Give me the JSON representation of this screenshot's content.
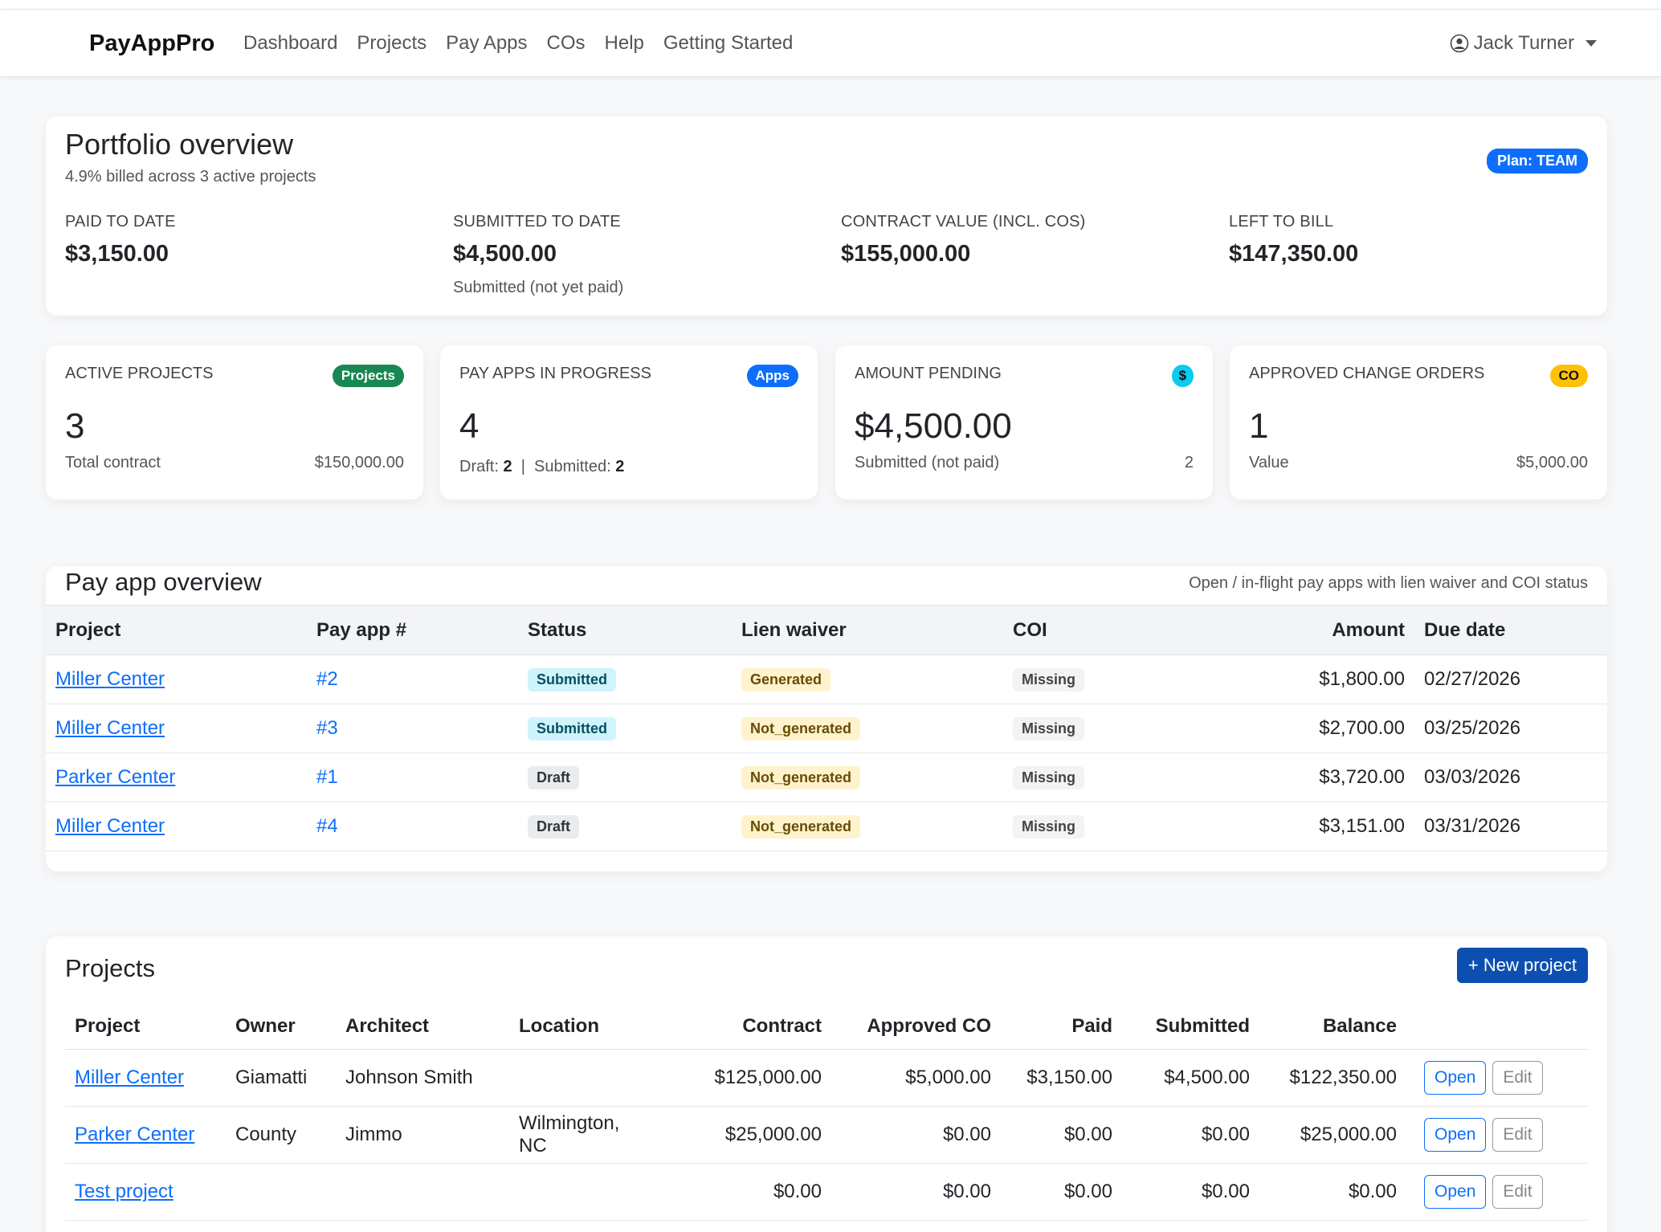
{
  "nav": {
    "brand": "PayAppPro",
    "links": [
      "Dashboard",
      "Projects",
      "Pay Apps",
      "COs",
      "Help",
      "Getting Started"
    ],
    "user": "Jack Turner"
  },
  "portfolio": {
    "title": "Portfolio overview",
    "subtitle": "4.9% billed across 3 active projects",
    "plan": "Plan: TEAM",
    "stats": [
      {
        "label": "PAID TO DATE",
        "value": "$3,150.00",
        "note": ""
      },
      {
        "label": "SUBMITTED TO DATE",
        "value": "$4,500.00",
        "note": "Submitted (not yet paid)"
      },
      {
        "label": "CONTRACT VALUE (INCL. COS)",
        "value": "$155,000.00",
        "note": ""
      },
      {
        "label": "LEFT TO BILL",
        "value": "$147,350.00",
        "note": ""
      }
    ]
  },
  "kpis": [
    {
      "label": "ACTIVE PROJECTS",
      "badge": "Projects",
      "badge_bg": "#198754",
      "badge_fg": "#ffffff",
      "value": "3",
      "foot_left": "Total contract",
      "foot_right": "$150,000.00"
    },
    {
      "label": "PAY APPS IN PROGRESS",
      "badge": "Apps",
      "badge_bg": "#0d6efd",
      "badge_fg": "#ffffff",
      "value": "4",
      "draft_label": "Draft:",
      "draft_value": "2",
      "sep": "|",
      "submitted_label": "Submitted:",
      "submitted_value": "2"
    },
    {
      "label": "AMOUNT PENDING",
      "badge": "$",
      "badge_bg": "#0dcaf0",
      "badge_fg": "#111111",
      "value": "$4,500.00",
      "foot_left": "Submitted (not paid)",
      "foot_right": "2"
    },
    {
      "label": "APPROVED CHANGE ORDERS",
      "badge": "CO",
      "badge_bg": "#ffc107",
      "badge_fg": "#111111",
      "value": "1",
      "foot_left": "Value",
      "foot_right": "$5,000.00"
    }
  ],
  "payapps": {
    "title": "Pay app overview",
    "subtitle": "Open / in-flight pay apps with lien waiver and COI status",
    "columns": [
      "Project",
      "Pay app #",
      "Status",
      "Lien waiver",
      "COI",
      "Amount",
      "Due date"
    ],
    "rows": [
      {
        "project": "Miller Center",
        "num": "#2",
        "status": "Submitted",
        "lien": "Generated",
        "coi": "Missing",
        "amount": "$1,800.00",
        "due": "02/27/2026"
      },
      {
        "project": "Miller Center",
        "num": "#3",
        "status": "Submitted",
        "lien": "Not_generated",
        "coi": "Missing",
        "amount": "$2,700.00",
        "due": "03/25/2026"
      },
      {
        "project": "Parker Center",
        "num": "#1",
        "status": "Draft",
        "lien": "Not_generated",
        "coi": "Missing",
        "amount": "$3,720.00",
        "due": "03/03/2026"
      },
      {
        "project": "Miller Center",
        "num": "#4",
        "status": "Draft",
        "lien": "Not_generated",
        "coi": "Missing",
        "amount": "$3,151.00",
        "due": "03/31/2026"
      }
    ]
  },
  "projects": {
    "title": "Projects",
    "new_button": "+ New project",
    "columns": [
      "Project",
      "Owner",
      "Architect",
      "Location",
      "Contract",
      "Approved CO",
      "Paid",
      "Submitted",
      "Balance"
    ],
    "open_label": "Open",
    "edit_label": "Edit",
    "rows": [
      {
        "project": "Miller Center",
        "owner": "Giamatti",
        "architect": "Johnson Smith",
        "location": "",
        "contract": "$125,000.00",
        "co": "$5,000.00",
        "paid": "$3,150.00",
        "submitted": "$4,500.00",
        "balance": "$122,350.00"
      },
      {
        "project": "Parker Center",
        "owner": "County",
        "architect": "Jimmo",
        "location": "Wilmington, NC",
        "contract": "$25,000.00",
        "co": "$0.00",
        "paid": "$0.00",
        "submitted": "$0.00",
        "balance": "$25,000.00"
      },
      {
        "project": "Test project",
        "owner": "",
        "architect": "",
        "location": "",
        "contract": "$0.00",
        "co": "$0.00",
        "paid": "$0.00",
        "submitted": "$0.00",
        "balance": "$0.00"
      }
    ]
  }
}
